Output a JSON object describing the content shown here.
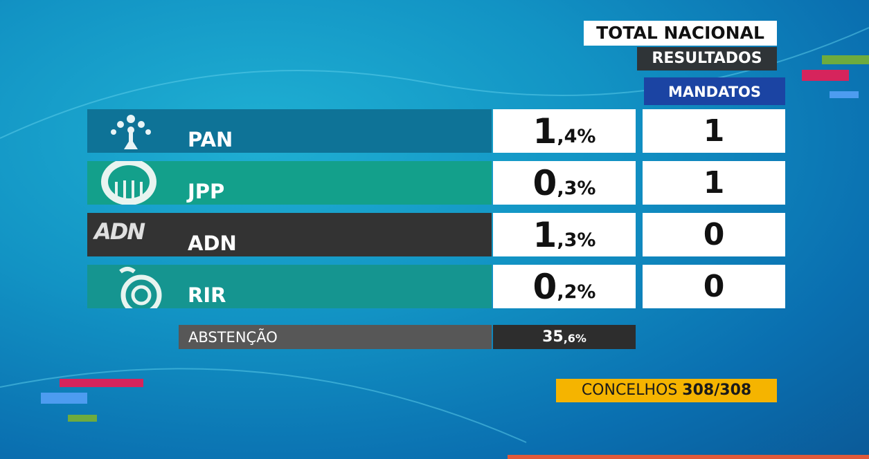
{
  "header": {
    "title": "TOTAL NACIONAL",
    "subtitle": "RESULTADOS",
    "seats_heading": "MANDATOS"
  },
  "table": {
    "rows": [
      {
        "name": "PAN",
        "percent": "1,4%",
        "seats": "1"
      },
      {
        "name": "JPP",
        "percent": "0,3%",
        "seats": "1"
      },
      {
        "name": "ADN",
        "logo": "ADN",
        "percent": "1,3%",
        "seats": "0"
      },
      {
        "name": "RIR",
        "percent": "0,2%",
        "seats": "0"
      }
    ]
  },
  "abstention": {
    "label": "ABSTENÇÃO",
    "value": "35,6%"
  },
  "footer": {
    "label": "CONCELHOS",
    "value": "308/308"
  }
}
